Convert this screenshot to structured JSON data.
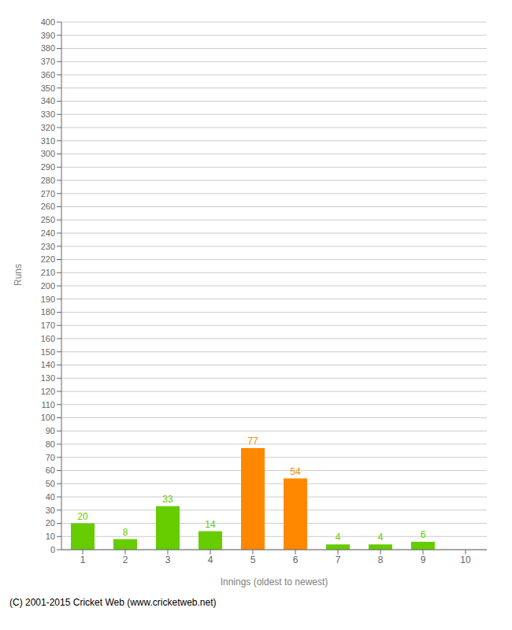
{
  "chart_data": {
    "type": "bar",
    "xlabel": "Innings (oldest to newest)",
    "ylabel": "Runs",
    "categories": [
      1,
      2,
      3,
      4,
      5,
      6,
      7,
      8,
      9,
      10
    ],
    "values": [
      20,
      8,
      33,
      14,
      77,
      54,
      4,
      4,
      6,
      0
    ],
    "colors": [
      "#66cc00",
      "#66cc00",
      "#66cc00",
      "#66cc00",
      "#ff8800",
      "#ff8800",
      "#66cc00",
      "#66cc00",
      "#66cc00",
      "#66cc00"
    ],
    "ylim": [
      0,
      400
    ],
    "yticks": [
      0,
      10,
      20,
      30,
      40,
      50,
      60,
      70,
      80,
      90,
      100,
      110,
      120,
      130,
      140,
      150,
      160,
      170,
      180,
      190,
      200,
      210,
      220,
      230,
      240,
      250,
      260,
      270,
      280,
      290,
      300,
      310,
      320,
      330,
      340,
      350,
      360,
      370,
      380,
      390,
      400
    ],
    "grid": true,
    "data_labels": true,
    "annotations": [
      "(C) 2001-2015 Cricket Web (www.cricketweb.net)"
    ]
  }
}
